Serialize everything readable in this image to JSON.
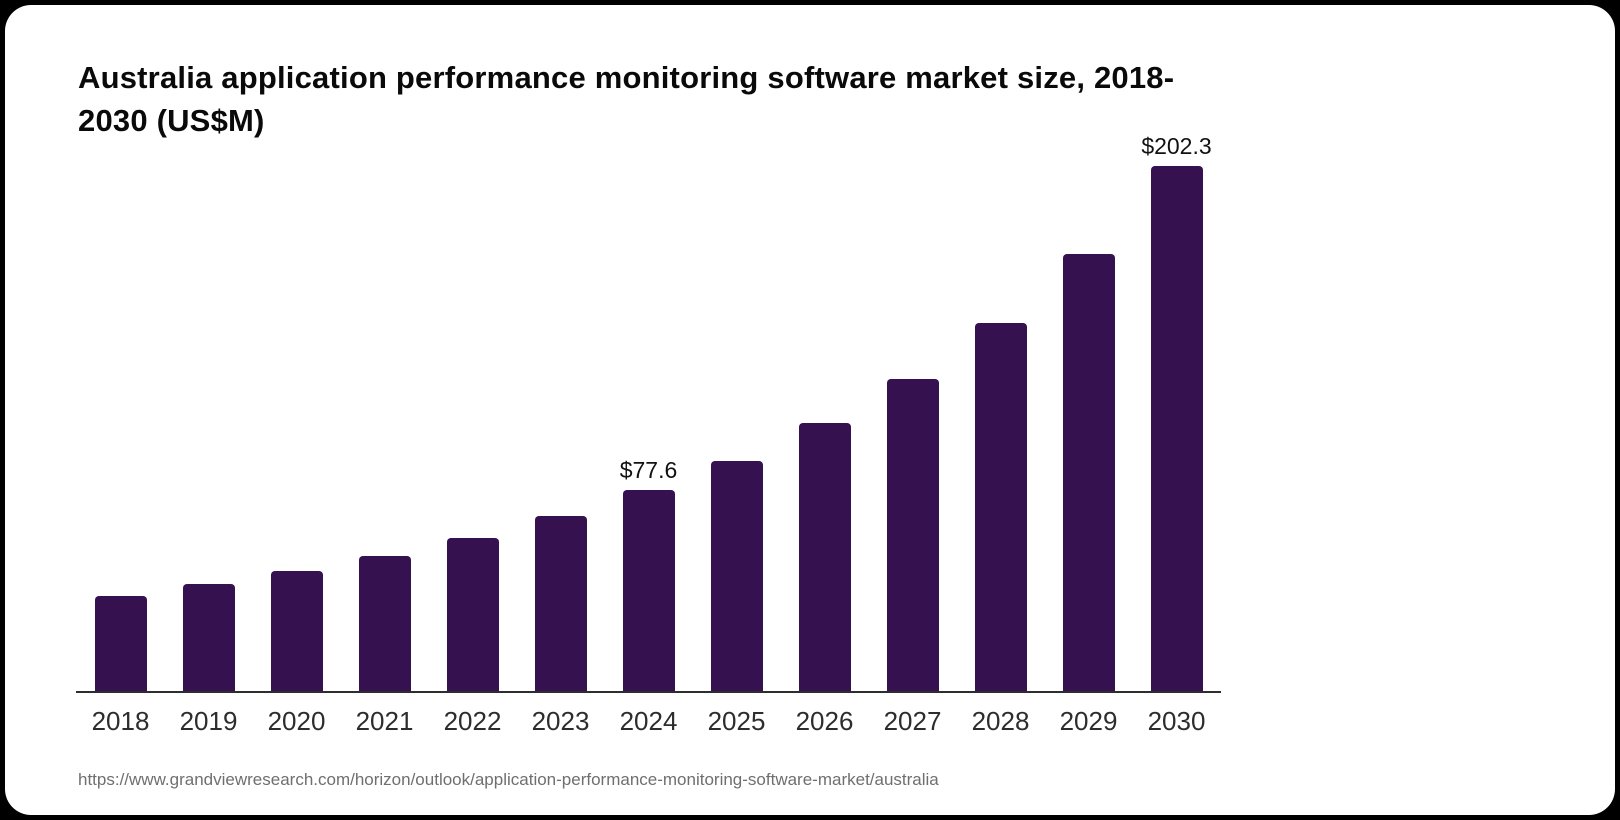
{
  "page": {
    "title": "Australia application performance monitoring software market size, 2018-2030 (US$M)",
    "source_url": "https://www.grandviewresearch.com/horizon/outlook/application-performance-monitoring-software-market/australia"
  },
  "chart_data": {
    "type": "bar",
    "title": "Australia application performance monitoring software market size, 2018-2030 (US$M)",
    "unit": "US$M",
    "categories": [
      "2018",
      "2019",
      "2020",
      "2021",
      "2022",
      "2023",
      "2024",
      "2025",
      "2026",
      "2027",
      "2028",
      "2029",
      "2030"
    ],
    "values": [
      36.5,
      41.2,
      46.4,
      52.2,
      59.0,
      67.4,
      77.6,
      88.8,
      103.3,
      120.3,
      141.8,
      168.4,
      202.3
    ],
    "data_labels": {
      "2024": "$77.6",
      "2030": "$202.3"
    },
    "xlabel": "",
    "ylabel": "",
    "ylim": [
      0,
      210
    ],
    "grid": false,
    "legend": false,
    "bar_color": "#351150",
    "axis_color": "#2e2e2e",
    "tick_color": "#2d2d2d",
    "label_color": "#111111"
  }
}
